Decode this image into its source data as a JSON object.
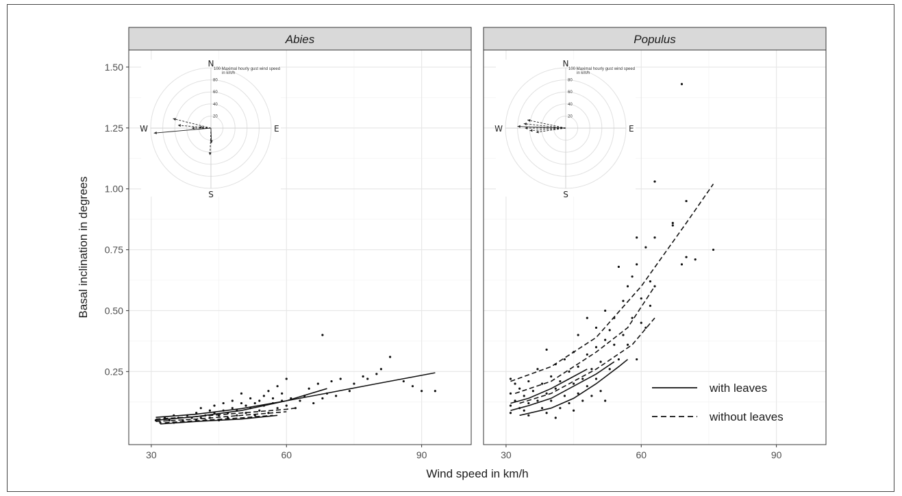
{
  "chart_data": {
    "type": "scatter",
    "ylabel": "Basal inclination in degrees",
    "xlabel": "Wind speed in km/h",
    "xlim": [
      25,
      101
    ],
    "ylim": [
      -0.05,
      1.57
    ],
    "x_ticks": [
      "30",
      "60",
      "90"
    ],
    "y_ticks": [
      "0.25",
      "0.50",
      "0.75",
      "1.00",
      "1.25",
      "1.50"
    ],
    "y_tick_values": [
      0.25,
      0.5,
      0.75,
      1.0,
      1.25,
      1.5
    ],
    "x_tick_values": [
      30,
      60,
      90
    ],
    "grid": true,
    "legend": {
      "placement": "bottom-right of Populus panel",
      "entries": [
        {
          "label": "with leaves",
          "linestyle": "solid"
        },
        {
          "label": "without leaves",
          "linestyle": "dashed"
        }
      ]
    },
    "panels": [
      {
        "title": "Abies",
        "points": [
          [
            31,
            0.05
          ],
          [
            32,
            0.04
          ],
          [
            33,
            0.06
          ],
          [
            34,
            0.05
          ],
          [
            35,
            0.07
          ],
          [
            35,
            0.04
          ],
          [
            36,
            0.06
          ],
          [
            37,
            0.05
          ],
          [
            38,
            0.07
          ],
          [
            39,
            0.06
          ],
          [
            40,
            0.08
          ],
          [
            40,
            0.05
          ],
          [
            41,
            0.1
          ],
          [
            41,
            0.06
          ],
          [
            42,
            0.07
          ],
          [
            42,
            0.05
          ],
          [
            43,
            0.09
          ],
          [
            43,
            0.06
          ],
          [
            44,
            0.08
          ],
          [
            44,
            0.11
          ],
          [
            45,
            0.07
          ],
          [
            45,
            0.05
          ],
          [
            46,
            0.12
          ],
          [
            46,
            0.09
          ],
          [
            47,
            0.08
          ],
          [
            47,
            0.06
          ],
          [
            48,
            0.1
          ],
          [
            48,
            0.13
          ],
          [
            49,
            0.07
          ],
          [
            49,
            0.09
          ],
          [
            50,
            0.12
          ],
          [
            50,
            0.16
          ],
          [
            51,
            0.08
          ],
          [
            51,
            0.11
          ],
          [
            52,
            0.1
          ],
          [
            52,
            0.14
          ],
          [
            53,
            0.07
          ],
          [
            53,
            0.12
          ],
          [
            54,
            0.13
          ],
          [
            54,
            0.09
          ],
          [
            55,
            0.15
          ],
          [
            55,
            0.11
          ],
          [
            56,
            0.17
          ],
          [
            56,
            0.08
          ],
          [
            57,
            0.12
          ],
          [
            57,
            0.14
          ],
          [
            58,
            0.19
          ],
          [
            58,
            0.1
          ],
          [
            59,
            0.13
          ],
          [
            59,
            0.16
          ],
          [
            60,
            0.22
          ],
          [
            60,
            0.11
          ],
          [
            61,
            0.14
          ],
          [
            62,
            0.1
          ],
          [
            63,
            0.13
          ],
          [
            64,
            0.15
          ],
          [
            65,
            0.18
          ],
          [
            66,
            0.12
          ],
          [
            67,
            0.2
          ],
          [
            68,
            0.4
          ],
          [
            68,
            0.14
          ],
          [
            69,
            0.16
          ],
          [
            70,
            0.21
          ],
          [
            71,
            0.15
          ],
          [
            72,
            0.22
          ],
          [
            74,
            0.17
          ],
          [
            75,
            0.2
          ],
          [
            77,
            0.23
          ],
          [
            78,
            0.22
          ],
          [
            80,
            0.24
          ],
          [
            81,
            0.26
          ],
          [
            83,
            0.31
          ],
          [
            86,
            0.21
          ],
          [
            88,
            0.19
          ],
          [
            90,
            0.17
          ],
          [
            93,
            0.17
          ]
        ],
        "fits": [
          {
            "linestyle": "solid",
            "x": [
              31,
              40,
              50,
              60,
              70,
              80,
              93
            ],
            "y": [
              0.062,
              0.075,
              0.098,
              0.13,
              0.165,
              0.2,
              0.245
            ]
          },
          {
            "linestyle": "solid",
            "x": [
              31,
              40,
              50,
              60,
              69
            ],
            "y": [
              0.05,
              0.065,
              0.09,
              0.13,
              0.18
            ]
          },
          {
            "linestyle": "solid",
            "x": [
              32,
              40,
              50,
              58
            ],
            "y": [
              0.035,
              0.045,
              0.055,
              0.07
            ]
          },
          {
            "linestyle": "dashed",
            "x": [
              31,
              40,
              50,
              60,
              62
            ],
            "y": [
              0.055,
              0.065,
              0.08,
              0.095,
              0.1
            ]
          },
          {
            "linestyle": "dashed",
            "x": [
              31,
              40,
              50,
              60
            ],
            "y": [
              0.045,
              0.055,
              0.07,
              0.085
            ]
          },
          {
            "linestyle": "dashed",
            "x": [
              33,
              40,
              50,
              57
            ],
            "y": [
              0.04,
              0.048,
              0.06,
              0.07
            ]
          }
        ],
        "rose": {
          "cardinals": [
            "N",
            "E",
            "S",
            "W"
          ],
          "title": "Maximal hourly gust wind speed",
          "unit": "in km/h",
          "radial_ticks": [
            "100",
            "80",
            "60",
            "40",
            "20"
          ],
          "arrows": [
            {
              "angle_deg": 265,
              "speed": 95,
              "style": "solid"
            },
            {
              "angle_deg": 284,
              "speed": 65,
              "style": "dashed"
            },
            {
              "angle_deg": 275,
              "speed": 55,
              "style": "dashed"
            },
            {
              "angle_deg": 270,
              "speed": 32,
              "style": "dashed"
            },
            {
              "angle_deg": 275,
              "speed": 20,
              "style": "dashed"
            },
            {
              "angle_deg": 182,
              "speed": 45,
              "style": "dashed"
            },
            {
              "angle_deg": 178,
              "speed": 25,
              "style": "solid"
            }
          ]
        }
      },
      {
        "title": "Populus",
        "points": [
          [
            31,
            0.22
          ],
          [
            31,
            0.16
          ],
          [
            31,
            0.11
          ],
          [
            31,
            0.08
          ],
          [
            32,
            0.2
          ],
          [
            32,
            0.13
          ],
          [
            33,
            0.18
          ],
          [
            33,
            0.1
          ],
          [
            34,
            0.15
          ],
          [
            34,
            0.09
          ],
          [
            35,
            0.21
          ],
          [
            35,
            0.12
          ],
          [
            35,
            0.07
          ],
          [
            36,
            0.17
          ],
          [
            37,
            0.26
          ],
          [
            37,
            0.13
          ],
          [
            38,
            0.2
          ],
          [
            38,
            0.1
          ],
          [
            39,
            0.34
          ],
          [
            39,
            0.16
          ],
          [
            39,
            0.08
          ],
          [
            40,
            0.23
          ],
          [
            40,
            0.13
          ],
          [
            41,
            0.28
          ],
          [
            41,
            0.18
          ],
          [
            41,
            0.06
          ],
          [
            42,
            0.21
          ],
          [
            42,
            0.1
          ],
          [
            43,
            0.3
          ],
          [
            43,
            0.15
          ],
          [
            44,
            0.25
          ],
          [
            44,
            0.12
          ],
          [
            45,
            0.33
          ],
          [
            45,
            0.2
          ],
          [
            45,
            0.09
          ],
          [
            46,
            0.4
          ],
          [
            46,
            0.27
          ],
          [
            46,
            0.16
          ],
          [
            47,
            0.22
          ],
          [
            47,
            0.13
          ],
          [
            48,
            0.47
          ],
          [
            48,
            0.32
          ],
          [
            48,
            0.19
          ],
          [
            49,
            0.26
          ],
          [
            49,
            0.15
          ],
          [
            50,
            0.43
          ],
          [
            50,
            0.35
          ],
          [
            50,
            0.22
          ],
          [
            51,
            0.29
          ],
          [
            51,
            0.17
          ],
          [
            52,
            0.5
          ],
          [
            52,
            0.38
          ],
          [
            52,
            0.13
          ],
          [
            53,
            0.42
          ],
          [
            53,
            0.26
          ],
          [
            54,
            0.36
          ],
          [
            54,
            0.47
          ],
          [
            55,
            0.68
          ],
          [
            55,
            0.3
          ],
          [
            56,
            0.54
          ],
          [
            56,
            0.4
          ],
          [
            57,
            0.36
          ],
          [
            57,
            0.6
          ],
          [
            58,
            0.47
          ],
          [
            58,
            0.64
          ],
          [
            59,
            0.8
          ],
          [
            59,
            0.69
          ],
          [
            59,
            0.3
          ],
          [
            60,
            0.55
          ],
          [
            60,
            0.45
          ],
          [
            61,
            0.76
          ],
          [
            61,
            0.43
          ],
          [
            62,
            0.52
          ],
          [
            62,
            0.62
          ],
          [
            63,
            1.03
          ],
          [
            63,
            0.8
          ],
          [
            63,
            0.6
          ],
          [
            67,
            0.86
          ],
          [
            67,
            0.85
          ],
          [
            69,
            1.43
          ],
          [
            69,
            0.69
          ],
          [
            70,
            0.95
          ],
          [
            70,
            0.72
          ],
          [
            72,
            0.71
          ],
          [
            76,
            0.75
          ]
        ],
        "fits": [
          {
            "linestyle": "solid",
            "x": [
              31,
              35,
              40,
              44,
              48
            ],
            "y": [
              0.12,
              0.14,
              0.18,
              0.22,
              0.26
            ]
          },
          {
            "linestyle": "solid",
            "x": [
              33,
              40,
              45,
              50,
              55,
              57
            ],
            "y": [
              0.07,
              0.1,
              0.14,
              0.2,
              0.27,
              0.3
            ]
          },
          {
            "linestyle": "solid",
            "x": [
              31,
              35,
              40,
              45,
              50,
              54
            ],
            "y": [
              0.09,
              0.11,
              0.14,
              0.19,
              0.24,
              0.29
            ]
          },
          {
            "linestyle": "dashed",
            "x": [
              31,
              40,
              50,
              60,
              70,
              76
            ],
            "y": [
              0.21,
              0.27,
              0.39,
              0.6,
              0.86,
              1.02
            ]
          },
          {
            "linestyle": "dashed",
            "x": [
              32,
              40,
              50,
              57,
              63
            ],
            "y": [
              0.16,
              0.21,
              0.33,
              0.43,
              0.6
            ]
          },
          {
            "linestyle": "dashed",
            "x": [
              33,
              40,
              50,
              58,
              63
            ],
            "y": [
              0.12,
              0.16,
              0.26,
              0.36,
              0.47
            ]
          }
        ],
        "rose": {
          "cardinals": [
            "N",
            "E",
            "S",
            "W"
          ],
          "title": "Maximal hourly gust wind speed",
          "unit": "in km/h",
          "radial_ticks": [
            "100",
            "80",
            "60",
            "40",
            "20"
          ],
          "arrows": [
            {
              "angle_deg": 282,
              "speed": 65,
              "style": "dashed"
            },
            {
              "angle_deg": 276,
              "speed": 70,
              "style": "dashed"
            },
            {
              "angle_deg": 272,
              "speed": 80,
              "style": "solid"
            },
            {
              "angle_deg": 270,
              "speed": 68,
              "style": "dashed"
            },
            {
              "angle_deg": 266,
              "speed": 60,
              "style": "dashed"
            },
            {
              "angle_deg": 262,
              "speed": 50,
              "style": "dashed"
            }
          ]
        }
      }
    ]
  }
}
